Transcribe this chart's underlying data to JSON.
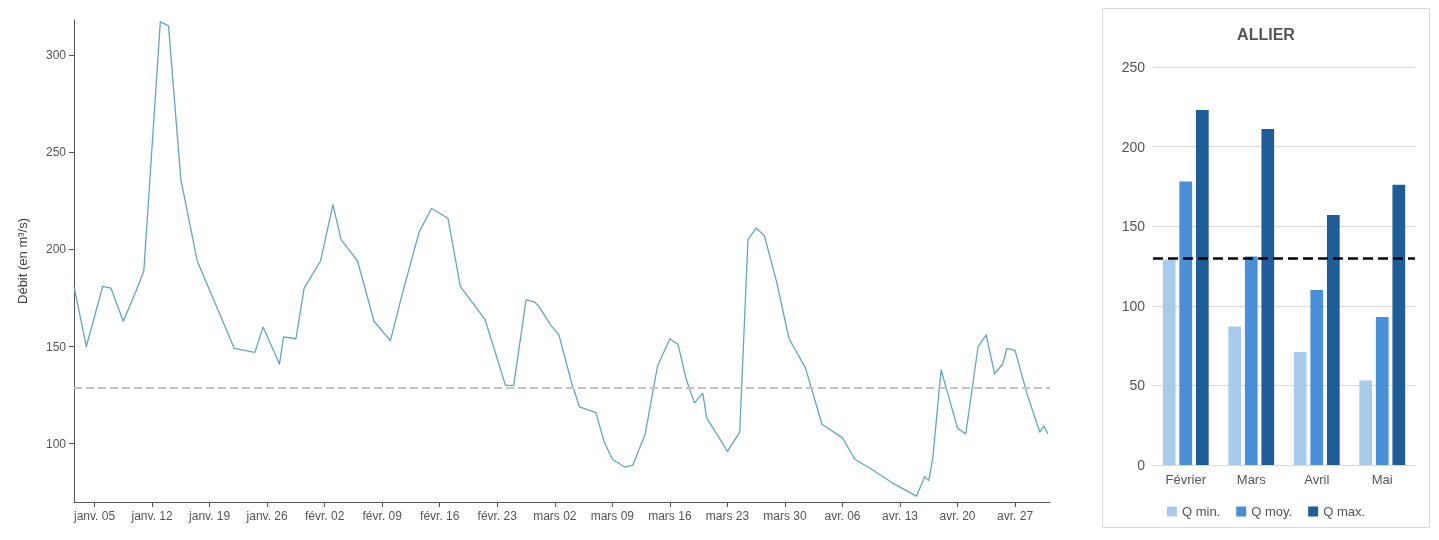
{
  "chart_data": [
    {
      "type": "line",
      "ylabel": "Débit (en m³/s)",
      "marker": "none",
      "xlim": [
        "--01-02T12:00",
        "--05-01T06:00"
      ],
      "xticks": [
        {
          "value": "--01-05",
          "label": "janv. 05"
        },
        {
          "value": "--01-12",
          "label": "janv. 12"
        },
        {
          "value": "--01-19",
          "label": "janv. 19"
        },
        {
          "value": "--01-26",
          "label": "janv. 26"
        },
        {
          "value": "--02-02",
          "label": "févr. 02"
        },
        {
          "value": "--02-09",
          "label": "févr. 09"
        },
        {
          "value": "--02-16",
          "label": "févr. 16"
        },
        {
          "value": "--02-23",
          "label": "févr. 23"
        },
        {
          "value": "--03-02",
          "label": "mars 02"
        },
        {
          "value": "--03-09",
          "label": "mars 09"
        },
        {
          "value": "--03-16",
          "label": "mars 16"
        },
        {
          "value": "--03-23",
          "label": "mars 23"
        },
        {
          "value": "--03-30",
          "label": "mars 30"
        },
        {
          "value": "--04-06",
          "label": "avr. 06"
        },
        {
          "value": "--04-13",
          "label": "avr. 13"
        },
        {
          "value": "--04-20",
          "label": "avr. 20"
        },
        {
          "value": "--04-27",
          "label": "avr. 27"
        }
      ],
      "ylim": [
        70,
        318
      ],
      "yticks": [
        100,
        150,
        200,
        250,
        300
      ],
      "x": [
        "--01-02T12:00",
        "--01-04",
        "--01-06",
        "--01-07",
        "--01-08T12:00",
        "--01-10",
        "--01-11",
        "--01-13",
        "--01-14",
        "--01-15T12:00",
        "--01-17T12:00",
        "--01-20T12:00",
        "--01-22",
        "--01-24T12:00",
        "--01-25T12:00",
        "--01-27T12:00",
        "--01-28",
        "--01-29T12:00",
        "--01-30T12:00",
        "--02-01T12:00",
        "--02-03",
        "--02-04",
        "--02-06",
        "--02-08",
        "--02-10",
        "--02-11T12:00",
        "--02-13T12:00",
        "--02-15",
        "--02-17",
        "--02-18T12:00",
        "--02-21T12:00",
        "--02-24",
        "--02-25",
        "--02-26T12:00",
        "--02-27T12:00",
        "--02-28",
        "--03-01T12:00",
        "--03-02T12:00",
        "--03-04",
        "--03-05",
        "--03-07",
        "--03-08",
        "--03-09",
        "--03-10T12:00",
        "--03-11T12:00",
        "--03-13",
        "--03-14T12:00",
        "--03-16",
        "--03-17",
        "--03-18",
        "--03-19",
        "--03-20",
        "--03-20T12:00",
        "--03-22",
        "--03-23",
        "--03-24T12:00",
        "--03-25T12:00",
        "--03-26T12:00",
        "--03-27T12:00",
        "--03-29",
        "--03-30T12:00",
        "--04-01T12:00",
        "--04-03T12:00",
        "--04-06",
        "--04-07T12:00",
        "--04-09T12:00",
        "--04-12",
        "--04-15",
        "--04-16",
        "--04-16T12:00",
        "--04-17",
        "--04-18",
        "--04-20",
        "--04-21",
        "--04-22T12:00",
        "--04-23T12:00",
        "--04-24T12:00",
        "--04-25T12:00",
        "--04-26",
        "--04-27",
        "--04-28T12:00",
        "--04-30",
        "--04-30T12:00",
        "--05-01"
      ],
      "series": [
        {
          "color": "#5fa7c5",
          "values": [
            181,
            150,
            181,
            180,
            163,
            178,
            189,
            317,
            315,
            236,
            194,
            164,
            149,
            147,
            160,
            141,
            155,
            154,
            180,
            194,
            223,
            205,
            194,
            163,
            153,
            178,
            209,
            221,
            216,
            181,
            164,
            130,
            130,
            174,
            173,
            171,
            161,
            156,
            132,
            119,
            116,
            101,
            92,
            88,
            89,
            105,
            140,
            154,
            151,
            133,
            121,
            126,
            113,
            103,
            96,
            106,
            205,
            211,
            207,
            183,
            154,
            139,
            110,
            103,
            92,
            87,
            80,
            73,
            83,
            81,
            93,
            138,
            108,
            105,
            150,
            156,
            136,
            141,
            149,
            148,
            125,
            106,
            109,
            105
          ]
        }
      ],
      "ref_lines": [
        {
          "axis": "y",
          "value": 129,
          "color": "#c4c4c4",
          "line_style": "dashed"
        }
      ]
    },
    {
      "type": "bar",
      "title": "ALLIER",
      "categories": [
        "Février",
        "Mars",
        "Avril",
        "Mai"
      ],
      "ylim": [
        0,
        250
      ],
      "yticks": [
        0,
        50,
        100,
        150,
        200,
        250
      ],
      "grid": "y",
      "legend": "bottom",
      "series": [
        {
          "name": "Q min.",
          "color": "#a9cbeb",
          "values": [
            129,
            87,
            71,
            53
          ]
        },
        {
          "name": "Q moy.",
          "color": "#4a90d9",
          "values": [
            178,
            131,
            110,
            93
          ]
        },
        {
          "name": "Q max.",
          "color": "#1f5d99",
          "values": [
            223,
            211,
            157,
            176
          ]
        }
      ],
      "ref_lines": [
        {
          "axis": "y",
          "value": 130,
          "color": "#000000",
          "line_style": "dashed"
        }
      ]
    }
  ]
}
